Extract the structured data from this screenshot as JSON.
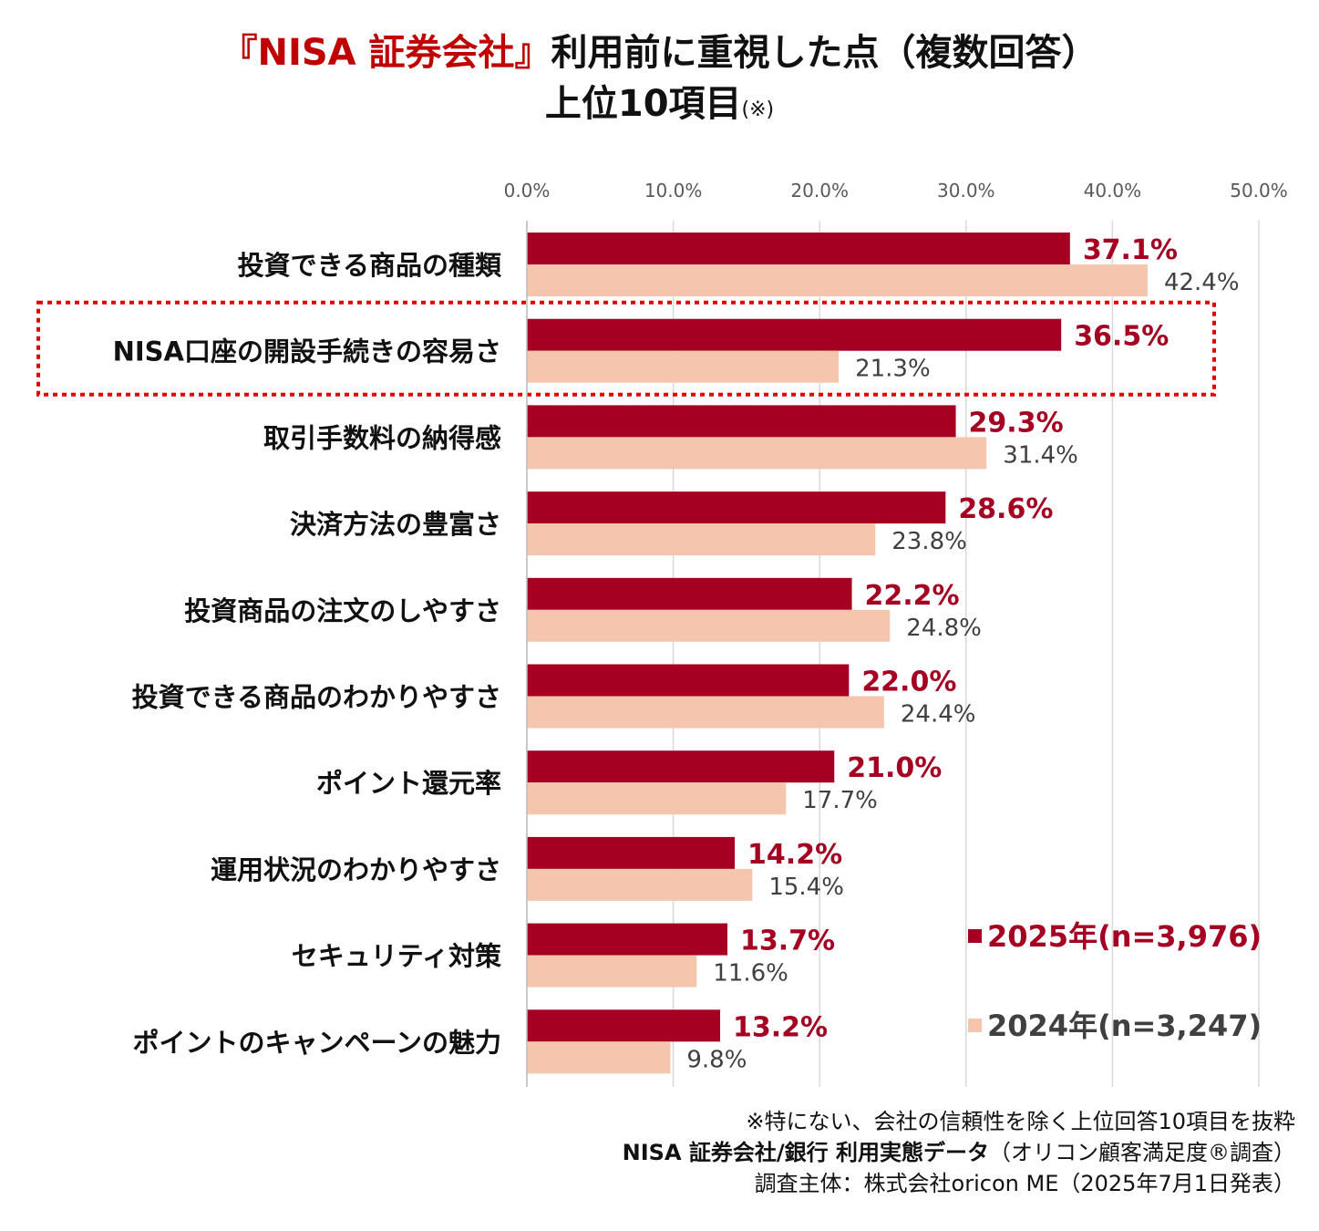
{
  "title": {
    "highlight": "『NISA 証券会社』",
    "rest": "利用前に重視した点（複数回答）",
    "line2": "上位10項目",
    "note": "(※)"
  },
  "colors": {
    "series_2025": "#a50021",
    "series_2024": "#f5c6ad",
    "highlight_box": "#e00000"
  },
  "chart_data": {
    "type": "bar",
    "orientation": "horizontal",
    "categories": [
      "投資できる商品の種類",
      "NISA口座の開設手続きの容易さ",
      "取引手数料の納得感",
      "決済方法の豊富さ",
      "投資商品の注文のしやすさ",
      "投資できる商品のわかりやすさ",
      "ポイント還元率",
      "運用状況のわかりやすさ",
      "セキュリティ対策",
      "ポイントのキャンペーンの魅力"
    ],
    "series": [
      {
        "name": "2025年(n=3,976)",
        "values": [
          37.1,
          36.5,
          29.3,
          28.6,
          22.2,
          22.0,
          21.0,
          14.2,
          13.7,
          13.2
        ]
      },
      {
        "name": "2024年(n=3,247)",
        "values": [
          42.4,
          21.3,
          31.4,
          23.8,
          24.8,
          24.4,
          17.7,
          15.4,
          11.6,
          9.8
        ]
      }
    ],
    "data_labels": [
      [
        "37.1%",
        "36.5%",
        "29.3%",
        "28.6%",
        "22.2%",
        "22.0%",
        "21.0%",
        "14.2%",
        "13.7%",
        "13.2%"
      ],
      [
        "42.4%",
        "21.3%",
        "31.4%",
        "23.8%",
        "24.8%",
        "24.4%",
        "17.7%",
        "15.4%",
        "11.6%",
        "9.8%"
      ]
    ],
    "x_ticks": [
      "0.0%",
      "10.0%",
      "20.0%",
      "30.0%",
      "40.0%",
      "50.0%"
    ],
    "xlim": [
      0,
      50
    ],
    "grid": true,
    "legend_position": "bottom-right",
    "highlighted_category": "NISA口座の開設手続きの容易さ"
  },
  "footnotes": {
    "line1": "※特にない、会社の信頼性を除く上位回答10項目を抜粋",
    "line2_bold": "NISA 証券会社/銀行 利用実態データ",
    "line2_rest": "（オリコン顧客満足度®調査）",
    "line3": "調査主体：株式会社oricon ME（2025年7月1日発表）"
  }
}
